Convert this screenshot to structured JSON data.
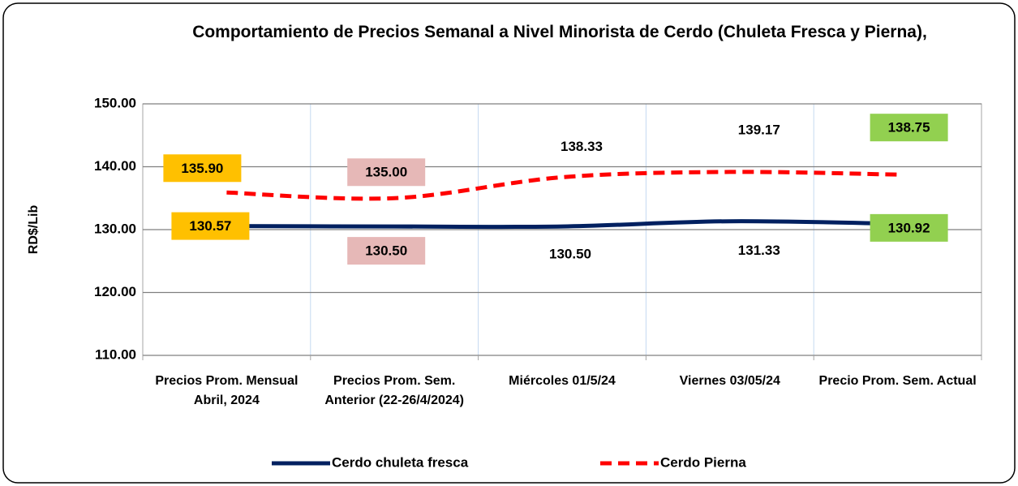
{
  "chart_data": {
    "type": "line",
    "title": "Comportamiento de Precios Semanal a Nivel Minorista de Cerdo (Chuleta Fresca y Pierna),",
    "y_label": "RD$/Lib",
    "categories": [
      "Precios Prom. Mensual Abril, 2024",
      "Precios Prom. Sem. Anterior (22-26/4/2024)",
      "Miércoles 01/5/24",
      "Viernes 03/05/24",
      "Precio Prom. Sem. Actual"
    ],
    "series": [
      {
        "name": "Cerdo chuleta fresca",
        "color": "#002060",
        "dash": false,
        "values": [
          130.57,
          130.5,
          130.5,
          131.33,
          130.92
        ],
        "value_labels": [
          "130.57",
          "130.50",
          "130.50",
          "131.33",
          "130.92"
        ]
      },
      {
        "name": "Cerdo Pierna",
        "color": "#ff0000",
        "dash": true,
        "values": [
          135.9,
          135.0,
          138.33,
          139.17,
          138.75
        ],
        "value_labels": [
          "135.90",
          "135.00",
          "138.33",
          "139.17",
          "138.75"
        ]
      }
    ],
    "label_backgrounds": [
      "#ffc000",
      "#e6b8b7",
      "#ffffff",
      "#ffffff",
      "#92d050"
    ],
    "ylim": [
      110,
      150
    ],
    "yticks": [
      {
        "value": 110,
        "label": "110.00"
      },
      {
        "value": 120,
        "label": "120.00"
      },
      {
        "value": 130,
        "label": "130.00"
      },
      {
        "value": 140,
        "label": "140.00"
      },
      {
        "value": 150,
        "label": "150.00"
      }
    ],
    "grid": true,
    "smooth": true,
    "legend": "bottom"
  }
}
